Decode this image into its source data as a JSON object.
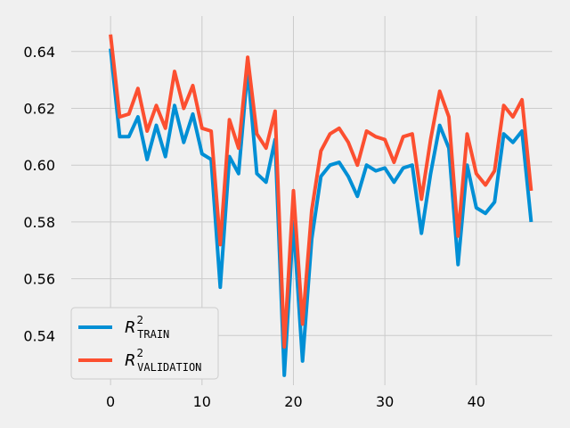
{
  "chart_data": {
    "type": "line",
    "title": "",
    "xlabel": "",
    "ylabel": "",
    "xlim": [
      -4.3,
      48.3
    ],
    "ylim": [
      0.5225,
      0.6525
    ],
    "xticks": [
      0,
      10,
      20,
      30,
      40
    ],
    "yticks": [
      0.54,
      0.56,
      0.58,
      0.6,
      0.62,
      0.64
    ],
    "grid": true,
    "legend_position": "lower-left",
    "style": "fivethirtyeight",
    "x": [
      0,
      1,
      2,
      3,
      4,
      5,
      6,
      7,
      8,
      9,
      10,
      11,
      12,
      13,
      14,
      15,
      16,
      17,
      18,
      19,
      20,
      21,
      22,
      23,
      24,
      25,
      26,
      27,
      28,
      29,
      30,
      31,
      32,
      33,
      34,
      35,
      36,
      37,
      38,
      39,
      40,
      41,
      42,
      43,
      44,
      45,
      46
    ],
    "series": [
      {
        "name": "R2 TRAIN",
        "label_main": "R",
        "label_sup": "2",
        "label_sub": "TRAIN",
        "color": "#008fd5",
        "values": [
          0.641,
          0.61,
          0.61,
          0.617,
          0.602,
          0.614,
          0.603,
          0.621,
          0.608,
          0.618,
          0.604,
          0.602,
          0.557,
          0.603,
          0.597,
          0.634,
          0.597,
          0.594,
          0.609,
          0.526,
          0.58,
          0.531,
          0.574,
          0.596,
          0.6,
          0.601,
          0.596,
          0.589,
          0.6,
          0.598,
          0.599,
          0.594,
          0.599,
          0.6,
          0.576,
          0.597,
          0.614,
          0.606,
          0.565,
          0.6,
          0.585,
          0.583,
          0.587,
          0.611,
          0.608,
          0.612,
          0.58
        ]
      },
      {
        "name": "R2 VALIDATION",
        "label_main": "R",
        "label_sup": "2",
        "label_sub": "VALIDATION",
        "color": "#fc4f30",
        "values": [
          0.646,
          0.617,
          0.618,
          0.627,
          0.612,
          0.621,
          0.613,
          0.633,
          0.62,
          0.628,
          0.613,
          0.612,
          0.572,
          0.616,
          0.606,
          0.638,
          0.611,
          0.606,
          0.619,
          0.536,
          0.591,
          0.544,
          0.584,
          0.605,
          0.611,
          0.613,
          0.608,
          0.6,
          0.612,
          0.61,
          0.609,
          0.601,
          0.61,
          0.611,
          0.588,
          0.609,
          0.626,
          0.617,
          0.575,
          0.611,
          0.597,
          0.593,
          0.598,
          0.621,
          0.617,
          0.623,
          0.591
        ]
      }
    ]
  }
}
